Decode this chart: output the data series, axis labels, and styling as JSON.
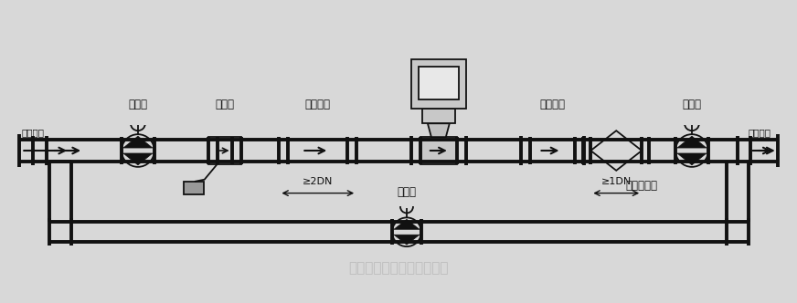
{
  "bg_color": "#d8d8d8",
  "line_color": "#111111",
  "label_color": "#111111",
  "watermark_color": "#aaaaaa",
  "labels": {
    "front_valve": "前阀门",
    "filter": "过滤器",
    "front_pipe": "前直管段",
    "rear_pipe": "后直管段",
    "rear_valve": "后阀门",
    "steel_exp": "钢制伸缩器",
    "bypass_valve": "旁通阀",
    "flow_in": "介质流向",
    "flow_out": "介质流向",
    "dim1": "≥2DN",
    "dim2": "≥1DN"
  },
  "watermark": "青岛万安电子技术有限公司",
  "pipe_lw": 2.5
}
